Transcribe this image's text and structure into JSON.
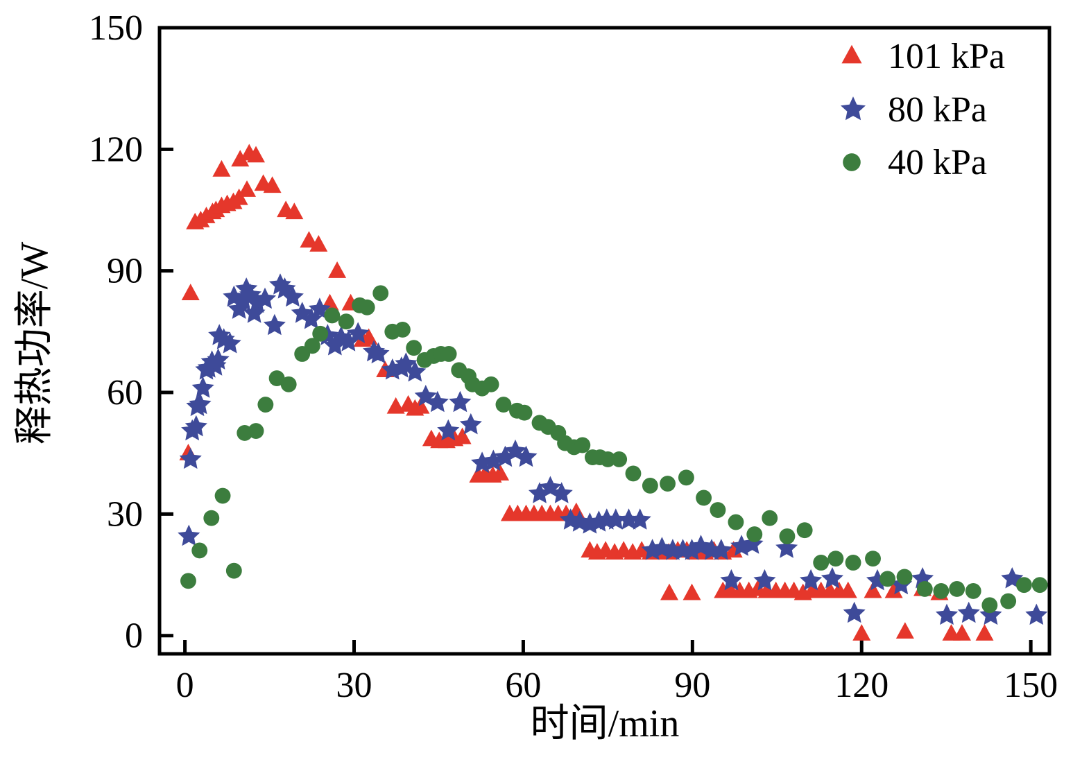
{
  "chart_data": {
    "type": "scatter",
    "title": "",
    "xlabel": "时间/min",
    "ylabel": "释热功率/W",
    "xlim": [
      -4.5,
      153.3
    ],
    "ylim": [
      -4.5,
      150
    ],
    "xticks": [
      "0",
      "30",
      "60",
      "90",
      "120",
      "150"
    ],
    "xtick_values": [
      0,
      30,
      60,
      90,
      120,
      150
    ],
    "yticks": [
      "0",
      "30",
      "60",
      "90",
      "120",
      "150"
    ],
    "ytick_values": [
      0,
      30,
      60,
      90,
      120,
      150
    ],
    "grid": false,
    "legend_position": "top-right-inside",
    "series": [
      {
        "name": "101 kPa",
        "marker": "triangle",
        "color": "#e5372b",
        "points": [
          [
            0.6,
            45
          ],
          [
            1.0,
            84.5
          ],
          [
            1.8,
            102
          ],
          [
            2.8,
            102.5
          ],
          [
            3.8,
            103.5
          ],
          [
            4.9,
            104.5
          ],
          [
            5.5,
            105
          ],
          [
            6.5,
            106
          ],
          [
            7.5,
            106.5
          ],
          [
            8.6,
            107
          ],
          [
            9.6,
            108
          ],
          [
            11.0,
            110
          ],
          [
            6.5,
            115
          ],
          [
            9.8,
            117.5
          ],
          [
            11.4,
            119
          ],
          [
            12.6,
            118.5
          ],
          [
            13.9,
            111.5
          ],
          [
            15.5,
            111
          ],
          [
            17.9,
            105
          ],
          [
            19.4,
            104.5
          ],
          [
            22.0,
            97.5
          ],
          [
            23.7,
            96.5
          ],
          [
            27.0,
            90
          ],
          [
            25.7,
            82
          ],
          [
            29.4,
            82
          ],
          [
            31.5,
            73
          ],
          [
            32.6,
            73.5
          ],
          [
            35.5,
            65.5
          ],
          [
            37.4,
            56.5
          ],
          [
            39.6,
            57
          ],
          [
            40.8,
            56
          ],
          [
            41.8,
            56.5
          ],
          [
            43.7,
            48.5
          ],
          [
            45.1,
            48
          ],
          [
            46.4,
            48
          ],
          [
            47.8,
            48.5
          ],
          [
            49.2,
            49
          ],
          [
            52.0,
            39.5
          ],
          [
            53.3,
            40
          ],
          [
            54.6,
            39.5
          ],
          [
            55.9,
            40
          ],
          [
            57.6,
            30
          ],
          [
            59.0,
            30
          ],
          [
            60.5,
            30
          ],
          [
            61.9,
            30
          ],
          [
            63.3,
            30
          ],
          [
            64.8,
            30
          ],
          [
            66.2,
            30
          ],
          [
            67.6,
            30
          ],
          [
            69.4,
            30.5
          ],
          [
            71.8,
            21
          ],
          [
            73.1,
            20.5
          ],
          [
            74.6,
            21
          ],
          [
            76.2,
            20.5
          ],
          [
            77.8,
            21
          ],
          [
            79.4,
            20.5
          ],
          [
            81.0,
            21
          ],
          [
            82.6,
            20.5
          ],
          [
            84.2,
            20.5
          ],
          [
            85.8,
            20.5
          ],
          [
            87.4,
            21
          ],
          [
            89.0,
            21
          ],
          [
            90.6,
            20.5
          ],
          [
            92.2,
            20.5
          ],
          [
            93.8,
            21
          ],
          [
            95.4,
            20.5
          ],
          [
            97.3,
            21
          ],
          [
            85.9,
            10.5
          ],
          [
            89.9,
            10.5
          ],
          [
            95.4,
            11
          ],
          [
            96.8,
            11
          ],
          [
            98.4,
            11
          ],
          [
            100.0,
            11
          ],
          [
            101.6,
            11.5
          ],
          [
            103.2,
            11
          ],
          [
            104.8,
            11
          ],
          [
            106.4,
            11
          ],
          [
            108.0,
            11
          ],
          [
            109.6,
            10.5
          ],
          [
            111.2,
            11
          ],
          [
            112.8,
            11
          ],
          [
            114.4,
            11
          ],
          [
            116.0,
            11
          ],
          [
            117.6,
            11
          ],
          [
            122.0,
            11
          ],
          [
            125.7,
            11
          ],
          [
            130.8,
            11.5
          ],
          [
            133.8,
            10.5
          ],
          [
            120.0,
            0.5
          ],
          [
            127.7,
            1
          ],
          [
            135.9,
            0.5
          ],
          [
            137.8,
            0.5
          ],
          [
            141.8,
            0.5
          ]
        ]
      },
      {
        "name": "80 kPa",
        "marker": "star",
        "color": "#3e4a99",
        "points": [
          [
            0.7,
            24.5
          ],
          [
            1.0,
            43.5
          ],
          [
            1.3,
            50.5
          ],
          [
            2.0,
            51.5
          ],
          [
            2.2,
            56.5
          ],
          [
            2.7,
            57
          ],
          [
            3.2,
            61
          ],
          [
            3.8,
            65.5
          ],
          [
            4.2,
            66
          ],
          [
            4.8,
            67.5
          ],
          [
            5.4,
            66.5
          ],
          [
            5.9,
            68
          ],
          [
            6.1,
            74
          ],
          [
            6.9,
            73
          ],
          [
            8.0,
            72
          ],
          [
            8.7,
            83.5
          ],
          [
            9.6,
            80.5
          ],
          [
            10.4,
            82.5
          ],
          [
            10.9,
            85.5
          ],
          [
            11.6,
            84
          ],
          [
            12.3,
            79.5
          ],
          [
            12.8,
            82
          ],
          [
            14.2,
            83
          ],
          [
            15.9,
            76.5
          ],
          [
            16.9,
            86.5
          ],
          [
            17.7,
            85.5
          ],
          [
            19.1,
            83.5
          ],
          [
            20.8,
            79.5
          ],
          [
            22.4,
            78
          ],
          [
            23.9,
            80.5
          ],
          [
            25.3,
            74
          ],
          [
            26.6,
            71.5
          ],
          [
            27.7,
            73.5
          ],
          [
            29.0,
            72.5
          ],
          [
            30.7,
            74.5
          ],
          [
            33.5,
            70
          ],
          [
            34.3,
            69.5
          ],
          [
            36.8,
            65.5
          ],
          [
            38.4,
            66
          ],
          [
            39.2,
            67
          ],
          [
            40.8,
            65
          ],
          [
            42.7,
            59
          ],
          [
            44.8,
            57.5
          ],
          [
            46.7,
            50.5
          ],
          [
            48.8,
            57.5
          ],
          [
            50.7,
            52
          ],
          [
            52.7,
            42.5
          ],
          [
            54.7,
            43
          ],
          [
            56.8,
            44
          ],
          [
            58.6,
            45.5
          ],
          [
            60.5,
            44
          ],
          [
            62.9,
            35
          ],
          [
            64.8,
            36.5
          ],
          [
            66.8,
            35
          ],
          [
            68.4,
            28.5
          ],
          [
            70.0,
            28
          ],
          [
            71.8,
            27.5
          ],
          [
            73.4,
            28
          ],
          [
            74.8,
            28.5
          ],
          [
            76.4,
            28.5
          ],
          [
            78.7,
            28.5
          ],
          [
            80.7,
            28.5
          ],
          [
            82.9,
            21
          ],
          [
            84.6,
            21.5
          ],
          [
            86.5,
            21
          ],
          [
            88.3,
            21
          ],
          [
            89.9,
            21
          ],
          [
            91.5,
            22
          ],
          [
            93.4,
            21
          ],
          [
            95.1,
            21
          ],
          [
            96.9,
            13.5
          ],
          [
            98.7,
            22
          ],
          [
            100.6,
            22.5
          ],
          [
            102.8,
            13.5
          ],
          [
            106.7,
            21.5
          ],
          [
            111.0,
            13.5
          ],
          [
            114.8,
            14
          ],
          [
            118.7,
            5.5
          ],
          [
            122.8,
            13.5
          ],
          [
            127.0,
            12.5
          ],
          [
            130.8,
            14
          ],
          [
            135.1,
            5
          ],
          [
            139.0,
            5.5
          ],
          [
            142.9,
            5
          ],
          [
            146.7,
            14
          ],
          [
            151.0,
            5
          ]
        ]
      },
      {
        "name": "40 kPa",
        "marker": "circle",
        "color": "#3c7d3e",
        "points": [
          [
            0.6,
            13.5
          ],
          [
            2.6,
            21
          ],
          [
            4.7,
            29
          ],
          [
            6.7,
            34.5
          ],
          [
            8.7,
            16
          ],
          [
            10.6,
            50
          ],
          [
            12.6,
            50.5
          ],
          [
            14.3,
            57
          ],
          [
            16.3,
            63.5
          ],
          [
            18.4,
            62
          ],
          [
            20.8,
            69.5
          ],
          [
            22.6,
            71.5
          ],
          [
            24.0,
            74.5
          ],
          [
            26.1,
            79
          ],
          [
            28.6,
            77.5
          ],
          [
            31.0,
            81.5
          ],
          [
            32.3,
            81
          ],
          [
            34.7,
            84.5
          ],
          [
            36.8,
            75
          ],
          [
            38.6,
            75.5
          ],
          [
            40.6,
            71
          ],
          [
            42.5,
            68
          ],
          [
            44.1,
            69
          ],
          [
            45.4,
            69.5
          ],
          [
            46.8,
            69.5
          ],
          [
            48.6,
            65.5
          ],
          [
            50.3,
            64
          ],
          [
            51.0,
            62
          ],
          [
            52.7,
            61
          ],
          [
            54.3,
            62
          ],
          [
            56.5,
            57
          ],
          [
            58.9,
            55.5
          ],
          [
            60.2,
            55
          ],
          [
            62.9,
            52.5
          ],
          [
            64.4,
            51.5
          ],
          [
            66.2,
            50
          ],
          [
            67.4,
            47.5
          ],
          [
            69.0,
            46.5
          ],
          [
            70.5,
            47
          ],
          [
            72.3,
            44
          ],
          [
            73.6,
            44
          ],
          [
            75.0,
            43.5
          ],
          [
            77.0,
            43.5
          ],
          [
            79.5,
            40
          ],
          [
            82.5,
            37
          ],
          [
            85.6,
            37.5
          ],
          [
            88.9,
            39
          ],
          [
            92.0,
            34
          ],
          [
            94.5,
            31
          ],
          [
            97.7,
            28
          ],
          [
            101.0,
            25
          ],
          [
            103.7,
            29
          ],
          [
            106.8,
            24.5
          ],
          [
            109.9,
            26
          ],
          [
            112.8,
            18
          ],
          [
            115.4,
            19
          ],
          [
            118.5,
            18
          ],
          [
            122.0,
            19
          ],
          [
            124.6,
            14
          ],
          [
            127.6,
            14.5
          ],
          [
            131.2,
            11.5
          ],
          [
            134.1,
            11
          ],
          [
            136.9,
            11.5
          ],
          [
            139.8,
            11
          ],
          [
            142.7,
            7.5
          ],
          [
            146.0,
            8.5
          ],
          [
            148.8,
            12.5
          ],
          [
            151.6,
            12.5
          ]
        ]
      }
    ]
  }
}
